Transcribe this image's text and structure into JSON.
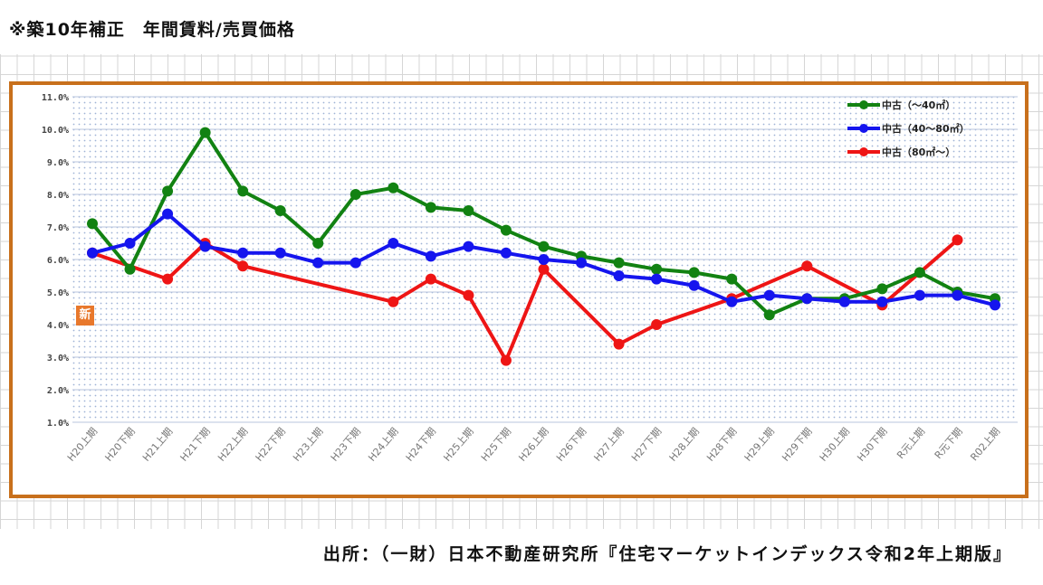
{
  "title": "※築10年補正　年間賃料/売買価格",
  "source": "出所：（一財）日本不動産研究所『住宅マーケットインデックス令和2年上期版』",
  "badge": "新",
  "colors": {
    "frame": "#c8701c",
    "green": "#128212",
    "blue": "#1515ee",
    "red": "#ee1515"
  },
  "chart_data": {
    "type": "line",
    "categories": [
      "H20上期",
      "H20下期",
      "H21上期",
      "H21下期",
      "H22上期",
      "H22下期",
      "H23上期",
      "H23下期",
      "H24上期",
      "H24下期",
      "H25上期",
      "H25下期",
      "H26上期",
      "H26下期",
      "H27上期",
      "H27下期",
      "H28上期",
      "H28下期",
      "H29上期",
      "H29下期",
      "H30上期",
      "H30下期",
      "R元上期",
      "R元下期",
      "R02上期"
    ],
    "y_ticks": [
      "1.0%",
      "2.0%",
      "3.0%",
      "4.0%",
      "5.0%",
      "6.0%",
      "7.0%",
      "8.0%",
      "9.0%",
      "10.0%",
      "11.0%"
    ],
    "ylim": [
      1.0,
      11.0
    ],
    "grid": true,
    "legend_position": "top-right",
    "series": [
      {
        "name": "中古（～40㎡）",
        "color": "#128212",
        "values": [
          7.1,
          5.7,
          8.1,
          9.9,
          8.1,
          7.5,
          6.5,
          8.0,
          8.2,
          7.6,
          7.5,
          6.9,
          6.4,
          6.1,
          5.9,
          5.7,
          5.6,
          5.4,
          4.3,
          4.8,
          4.8,
          5.1,
          5.6,
          5.0,
          4.8
        ]
      },
      {
        "name": "中古（40～80㎡）",
        "color": "#1515ee",
        "values": [
          6.2,
          6.5,
          7.4,
          6.4,
          6.2,
          6.2,
          5.9,
          5.9,
          6.5,
          6.1,
          6.4,
          6.2,
          6.0,
          5.9,
          5.5,
          5.4,
          5.2,
          4.7,
          4.9,
          4.8,
          4.7,
          4.7,
          4.9,
          4.9,
          4.6
        ]
      },
      {
        "name": "中古（80㎡～）",
        "color": "#ee1515",
        "values": [
          6.2,
          null,
          5.4,
          6.5,
          5.8,
          null,
          null,
          null,
          4.7,
          5.4,
          4.9,
          2.9,
          5.7,
          null,
          3.4,
          4.0,
          null,
          4.8,
          null,
          5.8,
          null,
          4.6,
          null,
          6.6,
          null
        ]
      }
    ]
  }
}
